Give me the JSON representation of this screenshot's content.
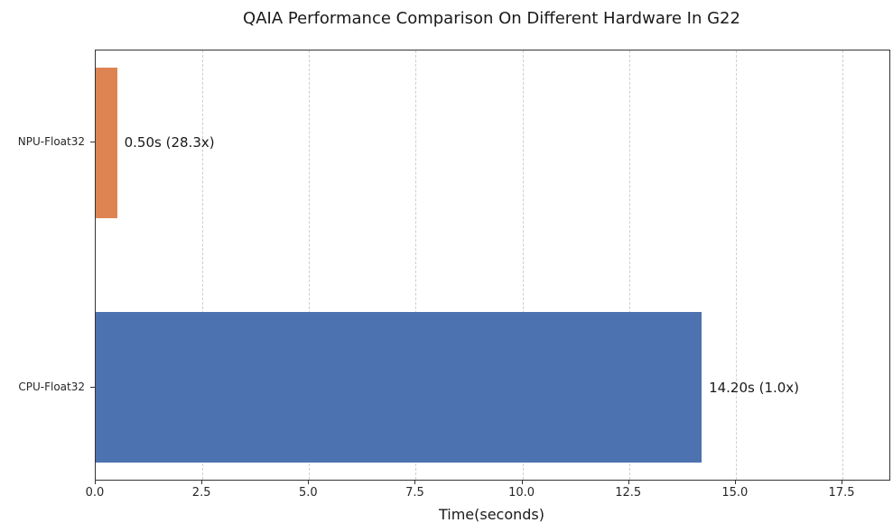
{
  "chart_data": {
    "type": "bar",
    "orientation": "horizontal",
    "title": "QAIA Performance Comparison On Different Hardware In G22",
    "xlabel": "Time(seconds)",
    "ylabel": "",
    "categories": [
      "NPU-Float32",
      "CPU-Float32"
    ],
    "values": [
      0.5,
      14.2
    ],
    "bar_labels": [
      "0.50s (28.3x)",
      "14.20s (1.0x)"
    ],
    "bar_colors": [
      "#dd8452",
      "#4c72b0"
    ],
    "xlim": [
      0,
      18.6
    ],
    "xticks": [
      0.0,
      2.5,
      5.0,
      7.5,
      10.0,
      12.5,
      15.0,
      17.5
    ],
    "xtick_labels": [
      "0.0",
      "2.5",
      "5.0",
      "7.5",
      "10.0",
      "12.5",
      "15.0",
      "17.5"
    ],
    "grid": "vertical-dashed",
    "legend": "none"
  }
}
